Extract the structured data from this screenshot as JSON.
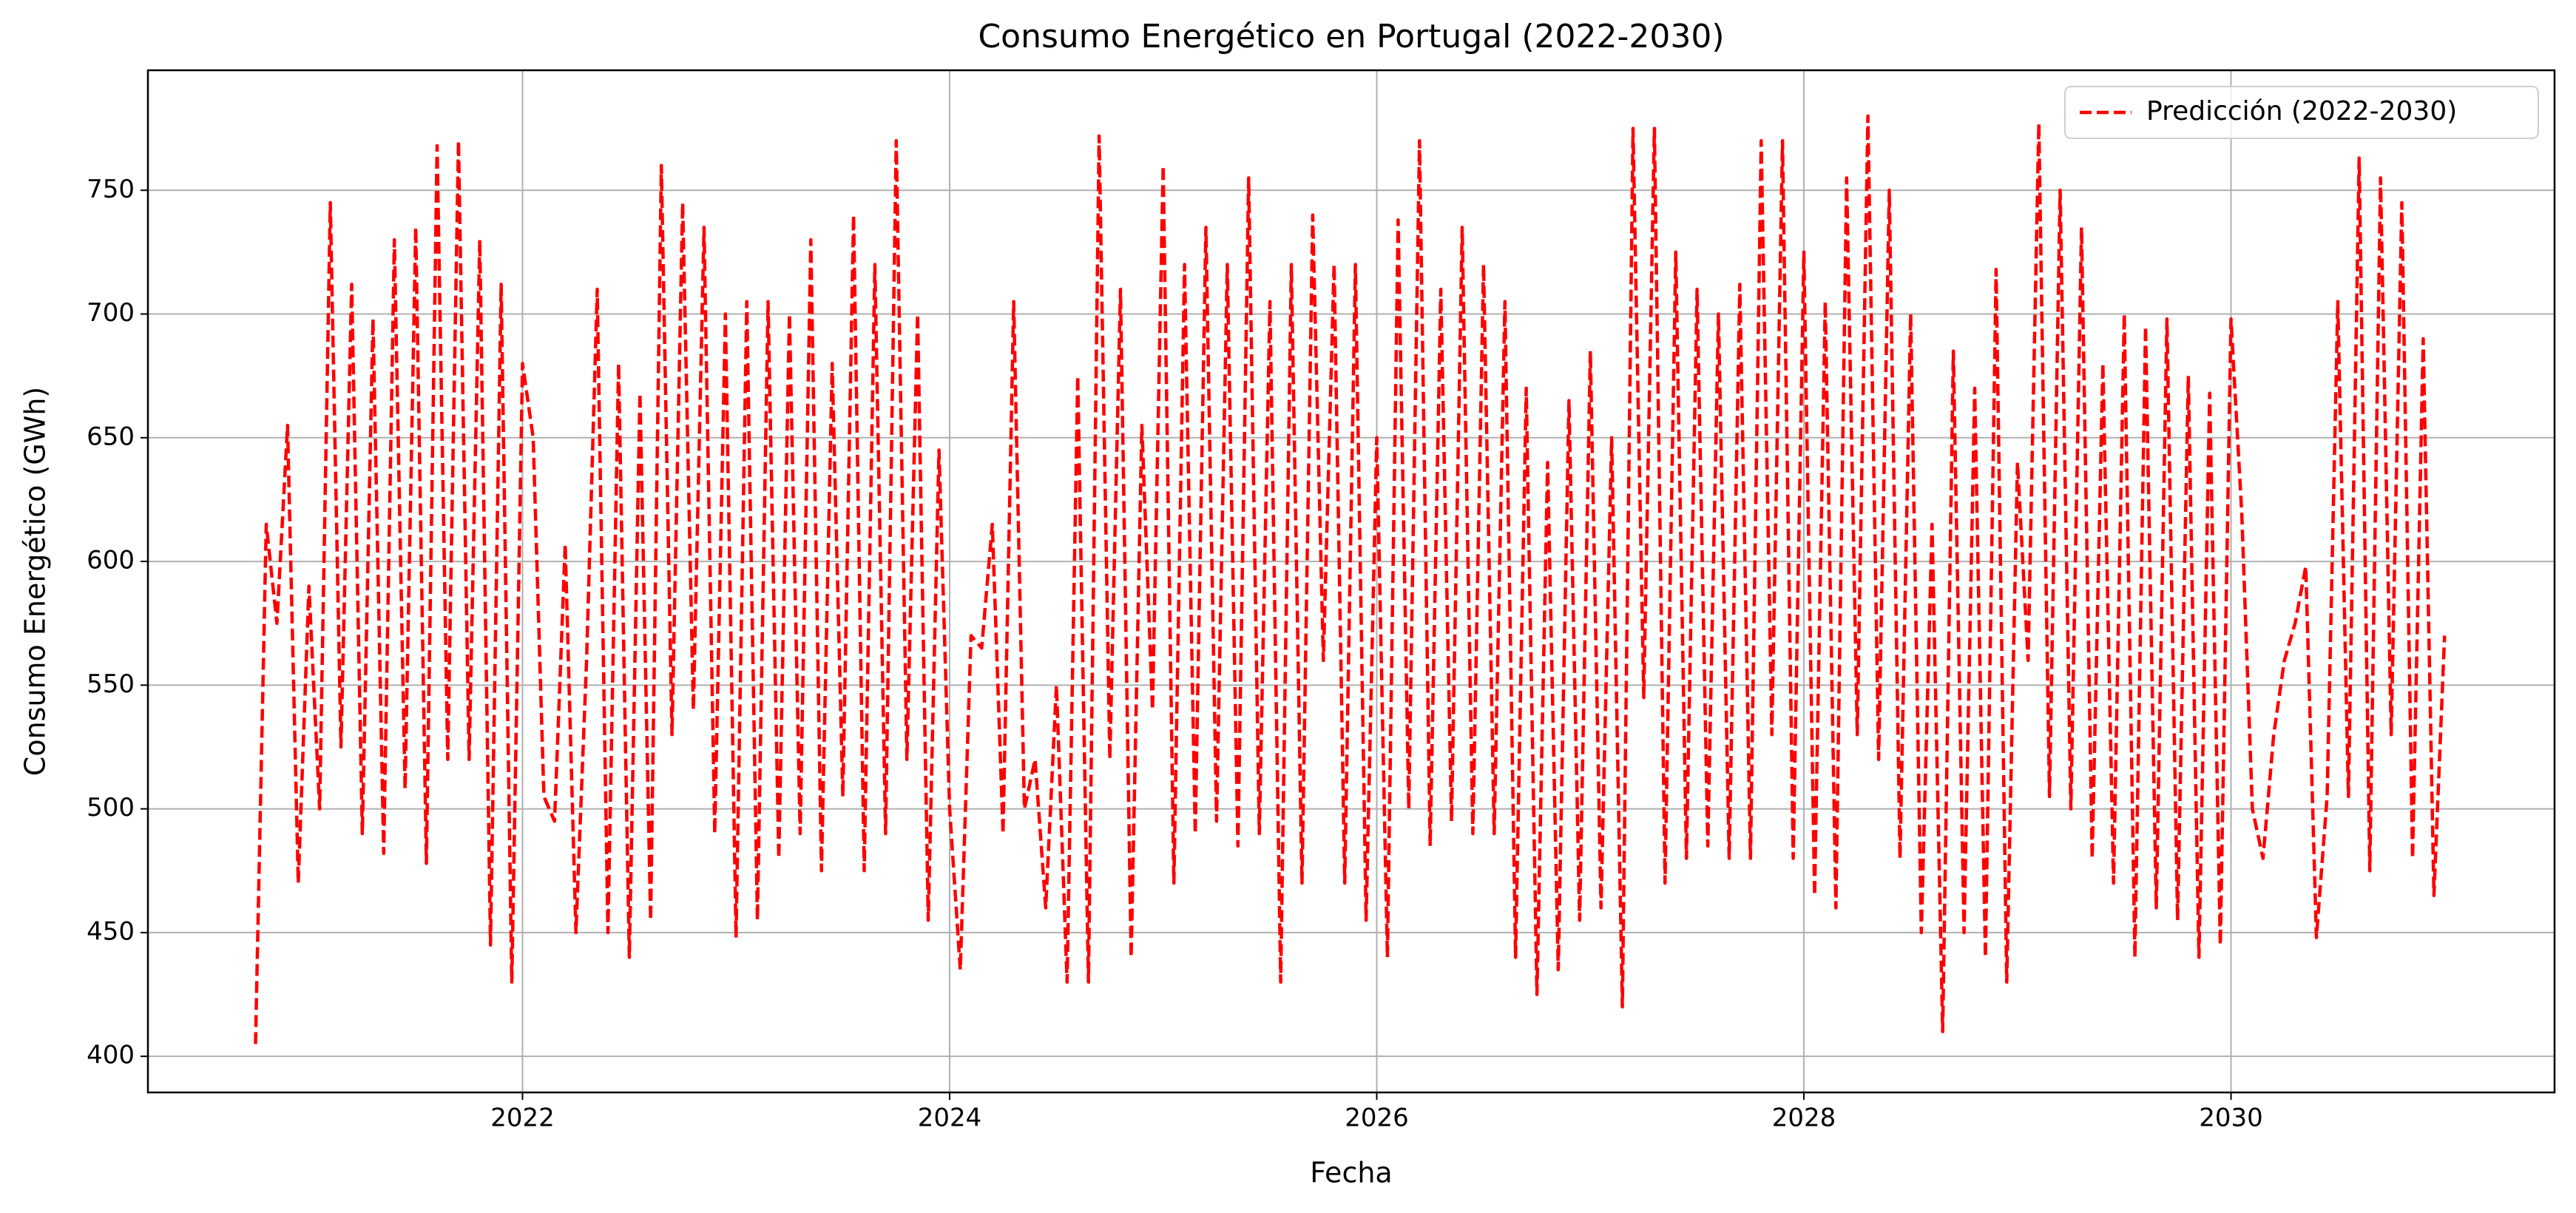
{
  "chart_data": {
    "type": "line",
    "title": "Consumo Energético en Portugal (2022-2030)",
    "x_label": "Fecha",
    "y_label": "Consumo Energético (GWh)",
    "x": [
      2020.75,
      2020.8,
      2020.85,
      2020.9,
      2020.95,
      2021,
      2021.05,
      2021.1,
      2021.15,
      2021.2,
      2021.25,
      2021.3,
      2021.35,
      2021.4,
      2021.45,
      2021.5,
      2021.55,
      2021.6,
      2021.65,
      2021.7,
      2021.75,
      2021.8,
      2021.85,
      2021.9,
      2021.95,
      2022,
      2022.05,
      2022.1,
      2022.15,
      2022.2,
      2022.25,
      2022.3,
      2022.35,
      2022.4,
      2022.45,
      2022.5,
      2022.55,
      2022.6,
      2022.65,
      2022.7,
      2022.75,
      2022.8,
      2022.85,
      2022.9,
      2022.95,
      2023,
      2023.05,
      2023.1,
      2023.15,
      2023.2,
      2023.25,
      2023.3,
      2023.35,
      2023.4,
      2023.45,
      2023.5,
      2023.55,
      2023.6,
      2023.65,
      2023.7,
      2023.75,
      2023.8,
      2023.85,
      2023.9,
      2023.95,
      2024,
      2024.05,
      2024.1,
      2024.15,
      2024.2,
      2024.25,
      2024.3,
      2024.35,
      2024.4,
      2024.45,
      2024.5,
      2024.55,
      2024.6,
      2024.65,
      2024.7,
      2024.75,
      2024.8,
      2024.85,
      2024.9,
      2024.95,
      2025,
      2025.05,
      2025.1,
      2025.15,
      2025.2,
      2025.25,
      2025.3,
      2025.35,
      2025.4,
      2025.45,
      2025.5,
      2025.55,
      2025.6,
      2025.65,
      2025.7,
      2025.75,
      2025.8,
      2025.85,
      2025.9,
      2025.95,
      2026,
      2026.05,
      2026.1,
      2026.15,
      2026.2,
      2026.25,
      2026.3,
      2026.35,
      2026.4,
      2026.45,
      2026.5,
      2026.55,
      2026.6,
      2026.65,
      2026.7,
      2026.75,
      2026.8,
      2026.85,
      2026.9,
      2026.95,
      2027,
      2027.05,
      2027.1,
      2027.15,
      2027.2,
      2027.25,
      2027.3,
      2027.35,
      2027.4,
      2027.45,
      2027.5,
      2027.55,
      2027.6,
      2027.65,
      2027.7,
      2027.75,
      2027.8,
      2027.85,
      2027.9,
      2027.95,
      2028,
      2028.05,
      2028.1,
      2028.15,
      2028.2,
      2028.25,
      2028.3,
      2028.35,
      2028.4,
      2028.45,
      2028.5,
      2028.55,
      2028.6,
      2028.65,
      2028.7,
      2028.75,
      2028.8,
      2028.85,
      2028.9,
      2028.95,
      2029,
      2029.05,
      2029.1,
      2029.15,
      2029.2,
      2029.25,
      2029.3,
      2029.35,
      2029.4,
      2029.45,
      2029.5,
      2029.55,
      2029.6,
      2029.65,
      2029.7,
      2029.75,
      2029.8,
      2029.85,
      2029.9,
      2029.95,
      2030,
      2030.05,
      2030.1,
      2030.15,
      2030.2,
      2030.25,
      2030.3,
      2030.35,
      2030.4,
      2030.45,
      2030.5,
      2030.55,
      2030.6,
      2030.65,
      2030.7,
      2030.75,
      2030.8,
      2030.85,
      2030.9,
      2030.95,
      2031
    ],
    "series": [
      {
        "name": "Predicción (2022-2030)",
        "color": "#ff0000",
        "line_style": "dashed",
        "values": [
          405,
          615,
          575,
          655,
          470,
          590,
          500,
          745,
          525,
          712,
          490,
          698,
          482,
          730,
          508,
          735,
          478,
          768,
          520,
          770,
          520,
          730,
          445,
          712,
          430,
          680,
          650,
          505,
          495,
          607,
          450,
          560,
          710,
          450,
          680,
          440,
          668,
          455,
          760,
          530,
          745,
          540,
          735,
          490,
          700,
          448,
          705,
          455,
          705,
          480,
          700,
          490,
          730,
          475,
          680,
          505,
          740,
          475,
          720,
          490,
          770,
          520,
          700,
          455,
          645,
          500,
          435,
          570,
          565,
          615,
          490,
          705,
          500,
          520,
          460,
          550,
          430,
          675,
          430,
          772,
          520,
          710,
          440,
          655,
          540,
          760,
          470,
          720,
          490,
          735,
          495,
          720,
          485,
          755,
          490,
          705,
          430,
          720,
          470,
          740,
          560,
          720,
          470,
          720,
          455,
          650,
          440,
          738,
          500,
          770,
          485,
          710,
          495,
          735,
          490,
          720,
          490,
          705,
          440,
          670,
          425,
          640,
          435,
          665,
          455,
          685,
          460,
          650,
          420,
          775,
          545,
          775,
          470,
          725,
          480,
          710,
          485,
          700,
          480,
          712,
          480,
          770,
          530,
          770,
          480,
          725,
          465,
          705,
          460,
          755,
          530,
          780,
          520,
          750,
          480,
          700,
          450,
          615,
          410,
          685,
          450,
          670,
          440,
          718,
          430,
          640,
          560,
          777,
          505,
          750,
          500,
          735,
          480,
          680,
          470,
          700,
          440,
          695,
          460,
          698,
          455,
          675,
          440,
          668,
          445,
          698,
          620,
          500,
          480,
          530,
          560,
          575,
          598,
          448,
          505,
          705,
          505,
          763,
          475,
          755,
          530,
          745,
          480,
          690,
          465,
          570
        ]
      }
    ],
    "xlim": [
      2020.246,
      2031.515
    ],
    "xticks": [
      2022,
      2024,
      2026,
      2028,
      2030
    ],
    "ylim": [
      385.4,
      798.5
    ],
    "yticks": [
      400,
      450,
      500,
      550,
      600,
      650,
      700,
      750
    ],
    "grid": true,
    "legend": "upper right"
  }
}
